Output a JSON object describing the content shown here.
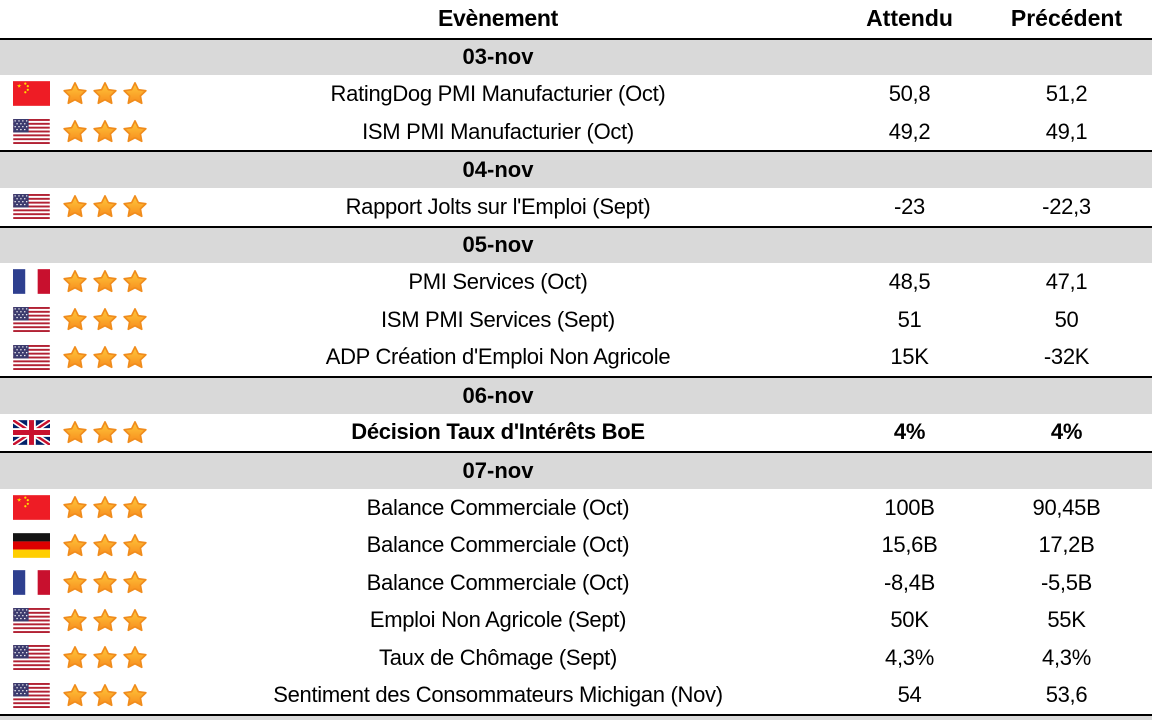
{
  "header": {
    "event": "Evènement",
    "expected": "Attendu",
    "previous": "Précédent"
  },
  "colors": {
    "band_gray": "#D9D9D9",
    "separator_black": "#000000",
    "star_top": "#FFC93C",
    "star_bottom": "#F78D1E",
    "star_outline": "#F08C1C"
  },
  "groups": [
    {
      "date": "03-nov",
      "events": [
        {
          "country": "china",
          "stars": 3,
          "label": "RatingDog PMI Manufacturier (Oct)",
          "expected": "50,8",
          "previous": "51,2",
          "bold": false
        },
        {
          "country": "usa",
          "stars": 3,
          "label": "ISM PMI Manufacturier (Oct)",
          "expected": "49,2",
          "previous": "49,1",
          "bold": false
        }
      ]
    },
    {
      "date": "04-nov",
      "events": [
        {
          "country": "usa",
          "stars": 3,
          "label": "Rapport Jolts sur l'Emploi (Sept)",
          "expected": "-23",
          "previous": "-22,3",
          "bold": false
        }
      ]
    },
    {
      "date": "05-nov",
      "events": [
        {
          "country": "france",
          "stars": 3,
          "label": "PMI Services (Oct)",
          "expected": "48,5",
          "previous": "47,1",
          "bold": false
        },
        {
          "country": "usa",
          "stars": 3,
          "label": "ISM PMI Services (Sept)",
          "expected": "51",
          "previous": "50",
          "bold": false
        },
        {
          "country": "usa",
          "stars": 3,
          "label": "ADP Création d'Emploi Non Agricole",
          "expected": "15K",
          "previous": "-32K",
          "bold": false
        }
      ]
    },
    {
      "date": "06-nov",
      "events": [
        {
          "country": "uk",
          "stars": 3,
          "label": "Décision Taux d'Intérêts BoE",
          "expected": "4%",
          "previous": "4%",
          "bold": true
        }
      ]
    },
    {
      "date": "07-nov",
      "events": [
        {
          "country": "china",
          "stars": 3,
          "label": "Balance Commerciale (Oct)",
          "expected": "100B",
          "previous": "90,45B",
          "bold": false
        },
        {
          "country": "germany",
          "stars": 3,
          "label": "Balance Commerciale (Oct)",
          "expected": "15,6B",
          "previous": "17,2B",
          "bold": false
        },
        {
          "country": "france",
          "stars": 3,
          "label": "Balance Commerciale (Oct)",
          "expected": "-8,4B",
          "previous": "-5,5B",
          "bold": false
        },
        {
          "country": "usa",
          "stars": 3,
          "label": "Emploi Non Agricole (Sept)",
          "expected": "50K",
          "previous": "55K",
          "bold": false
        },
        {
          "country": "usa",
          "stars": 3,
          "label": "Taux de Chômage (Sept)",
          "expected": "4,3%",
          "previous": "4,3%",
          "bold": false
        },
        {
          "country": "usa",
          "stars": 3,
          "label": "Sentiment des Consommateurs Michigan (Nov)",
          "expected": "54",
          "previous": "53,6",
          "bold": false
        }
      ]
    }
  ]
}
